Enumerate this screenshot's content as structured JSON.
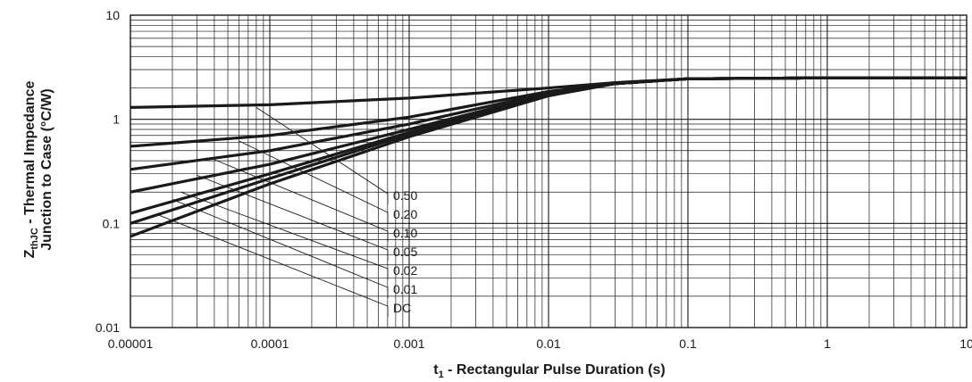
{
  "chart_data": {
    "type": "line",
    "x_scale": "log",
    "y_scale": "log",
    "xlim": [
      1e-05,
      10
    ],
    "ylim": [
      0.01,
      10
    ],
    "grid": true,
    "xlabel": {
      "main": "t",
      "sub": "1",
      "rest": " - Rectangular Pulse Duration (s)"
    },
    "ylabel": {
      "line1_main": "Z",
      "line1_sub": "thJC",
      "line1_rest": " - Thermal Impedance",
      "line2": "Junction to Case (°C/W)"
    },
    "x_ticks": [
      {
        "value": 1e-05,
        "label": "0.00001"
      },
      {
        "value": 0.0001,
        "label": "0.0001"
      },
      {
        "value": 0.001,
        "label": "0.001"
      },
      {
        "value": 0.01,
        "label": "0.01"
      },
      {
        "value": 0.1,
        "label": "0.1"
      },
      {
        "value": 1,
        "label": "1"
      },
      {
        "value": 10,
        "label": "10"
      }
    ],
    "y_ticks": [
      {
        "value": 0.01,
        "label": "0.01"
      },
      {
        "value": 0.1,
        "label": "0.1"
      },
      {
        "value": 1,
        "label": "1"
      },
      {
        "value": 10,
        "label": "10"
      }
    ],
    "series": [
      {
        "name": "0.50",
        "x": [
          1e-05,
          0.0001,
          0.001,
          0.01,
          0.03,
          0.1,
          1,
          10
        ],
        "y": [
          1.3,
          1.38,
          1.6,
          2.0,
          2.25,
          2.45,
          2.5,
          2.5
        ]
      },
      {
        "name": "0.20",
        "x": [
          1e-05,
          0.0001,
          0.001,
          0.01,
          0.03,
          0.1,
          1,
          10
        ],
        "y": [
          0.55,
          0.7,
          1.05,
          1.85,
          2.2,
          2.45,
          2.5,
          2.5
        ]
      },
      {
        "name": "0.10",
        "x": [
          1e-05,
          0.0001,
          0.001,
          0.01,
          0.03,
          0.1,
          1,
          10
        ],
        "y": [
          0.33,
          0.5,
          0.9,
          1.8,
          2.2,
          2.45,
          2.5,
          2.5
        ]
      },
      {
        "name": "0.05",
        "x": [
          1e-05,
          0.0001,
          0.001,
          0.01,
          0.03,
          0.1,
          1,
          10
        ],
        "y": [
          0.2,
          0.37,
          0.8,
          1.75,
          2.2,
          2.45,
          2.5,
          2.5
        ]
      },
      {
        "name": "0.02",
        "x": [
          1e-05,
          0.0001,
          0.001,
          0.01,
          0.03,
          0.1,
          1,
          10
        ],
        "y": [
          0.125,
          0.3,
          0.75,
          1.72,
          2.2,
          2.45,
          2.5,
          2.5
        ]
      },
      {
        "name": "0.01",
        "x": [
          1e-05,
          0.0001,
          0.001,
          0.01,
          0.03,
          0.1,
          1,
          10
        ],
        "y": [
          0.1,
          0.27,
          0.72,
          1.7,
          2.2,
          2.45,
          2.5,
          2.5
        ]
      },
      {
        "name": "DC",
        "x": [
          1e-05,
          0.0001,
          0.001,
          0.01,
          0.03,
          0.1,
          1,
          10
        ],
        "y": [
          0.075,
          0.24,
          0.68,
          1.68,
          2.2,
          2.45,
          2.5,
          2.5
        ]
      }
    ],
    "leaders": [
      {
        "label": "0.50",
        "from": [
          8e-05,
          1.3
        ]
      },
      {
        "label": "0.20",
        "from": [
          6e-05,
          0.62
        ]
      },
      {
        "label": "0.10",
        "from": [
          4e-05,
          0.41
        ]
      },
      {
        "label": "0.05",
        "from": [
          3e-05,
          0.29
        ]
      },
      {
        "label": "0.02",
        "from": [
          2.3e-05,
          0.2
        ]
      },
      {
        "label": "0.01",
        "from": [
          2e-05,
          0.17
        ]
      },
      {
        "label": "DC",
        "from": [
          1.6e-05,
          0.12
        ]
      }
    ]
  }
}
